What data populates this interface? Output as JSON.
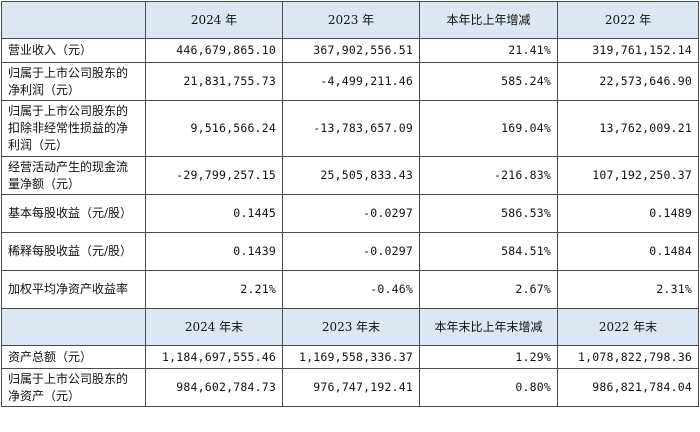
{
  "header_row_1": [
    "",
    "2024 年",
    "2023 年",
    "本年比上年增减",
    "2022 年"
  ],
  "rows_1": [
    {
      "label": "营业收入（元）",
      "v2024": "446,679,865.10",
      "v2023": "367,902,556.51",
      "change": "21.41%",
      "v2022": "319,761,152.14"
    },
    {
      "label": "归属于上市公司股东的净利润（元）",
      "v2024": "21,831,755.73",
      "v2023": "-4,499,211.46",
      "change": "585.24%",
      "v2022": "22,573,646.90"
    },
    {
      "label": "归属于上市公司股东的扣除非经常性损益的净利润（元）",
      "v2024": "9,516,566.24",
      "v2023": "-13,783,657.09",
      "change": "169.04%",
      "v2022": "13,762,009.21"
    },
    {
      "label": "经营活动产生的现金流量净额（元）",
      "v2024": "-29,799,257.15",
      "v2023": "25,505,833.43",
      "change": "-216.83%",
      "v2022": "107,192,250.37"
    },
    {
      "label": "基本每股收益（元/股）",
      "v2024": "0.1445",
      "v2023": "-0.0297",
      "change": "586.53%",
      "v2022": "0.1489"
    },
    {
      "label": "稀释每股收益（元/股）",
      "v2024": "0.1439",
      "v2023": "-0.0297",
      "change": "584.51%",
      "v2022": "0.1484"
    },
    {
      "label": "加权平均净资产收益率",
      "v2024": "2.21%",
      "v2023": "-0.46%",
      "change": "2.67%",
      "v2022": "2.31%"
    }
  ],
  "header_row_2": [
    "",
    "2024 年末",
    "2023 年末",
    "本年末比上年末增减",
    "2022 年末"
  ],
  "rows_2": [
    {
      "label": "资产总额（元）",
      "v2024": "1,184,697,555.46",
      "v2023": "1,169,558,336.37",
      "change": "1.29%",
      "v2022": "1,078,822,798.36"
    },
    {
      "label": "归属于上市公司股东的净资产（元）",
      "v2024": "984,602,784.73",
      "v2023": "976,747,192.41",
      "change": "0.80%",
      "v2022": "986,821,784.04"
    }
  ]
}
